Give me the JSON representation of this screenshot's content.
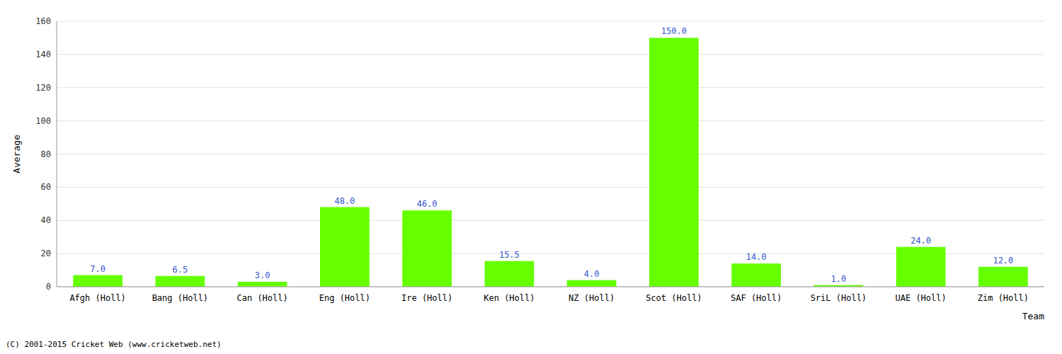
{
  "chart_data": {
    "type": "bar",
    "categories": [
      "Afgh (Holl)",
      "Bang (Holl)",
      "Can (Holl)",
      "Eng (Holl)",
      "Ire (Holl)",
      "Ken (Holl)",
      "NZ (Holl)",
      "Scot (Holl)",
      "SAF (Holl)",
      "SriL (Holl)",
      "UAE (Holl)",
      "Zim (Holl)"
    ],
    "values": [
      7.0,
      6.5,
      3.0,
      48.0,
      46.0,
      15.5,
      4.0,
      150.0,
      14.0,
      1.0,
      24.0,
      12.0
    ],
    "value_labels": [
      "7.0",
      "6.5",
      "3.0",
      "48.0",
      "46.0",
      "15.5",
      "4.0",
      "150.0",
      "14.0",
      "1.0",
      "24.0",
      "12.0"
    ],
    "data_labels": true,
    "color": "#66ff00",
    "xlabel": "Team",
    "ylabel": "Average",
    "ylim": [
      0,
      160
    ],
    "yticks": [
      0,
      20,
      40,
      60,
      80,
      100,
      120,
      140,
      160
    ],
    "grid": true,
    "annotations": [
      "(C) 2001-2015 Cricket Web (www.cricketweb.net)"
    ]
  }
}
